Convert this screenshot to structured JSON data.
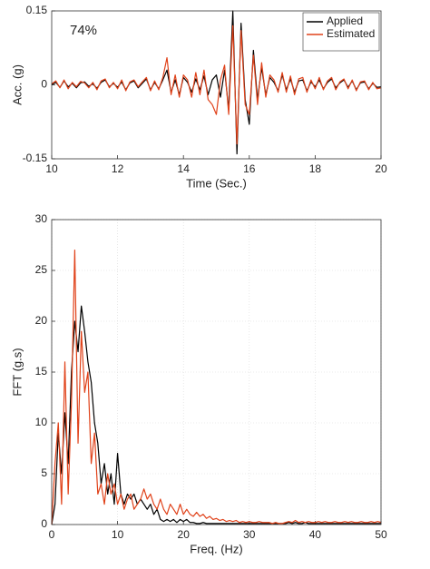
{
  "chart_data": [
    {
      "type": "line",
      "xlabel": "Time (Sec.)",
      "ylabel": "Acc. (g)",
      "annotations": [
        "74%"
      ],
      "legend": "upper right",
      "grid": false,
      "xlim": [
        10,
        20
      ],
      "xticks": [
        10,
        12,
        14,
        16,
        18,
        20
      ],
      "ylim": [
        -0.15,
        0.15
      ],
      "yticks": [
        -0.15,
        0,
        0.15
      ],
      "x": [
        10,
        10.125,
        10.25,
        10.375,
        10.5,
        10.625,
        10.75,
        10.875,
        11,
        11.125,
        11.25,
        11.375,
        11.5,
        11.625,
        11.75,
        11.875,
        12,
        12.125,
        12.25,
        12.375,
        12.5,
        12.625,
        12.75,
        12.875,
        13,
        13.125,
        13.25,
        13.375,
        13.5,
        13.625,
        13.75,
        13.875,
        14,
        14.125,
        14.25,
        14.375,
        14.5,
        14.625,
        14.75,
        14.875,
        15,
        15.125,
        15.25,
        15.375,
        15.5,
        15.625,
        15.75,
        15.875,
        16,
        16.125,
        16.25,
        16.375,
        16.5,
        16.625,
        16.75,
        16.875,
        17,
        17.125,
        17.25,
        17.375,
        17.5,
        17.625,
        17.75,
        17.875,
        18,
        18.125,
        18.25,
        18.375,
        18.5,
        18.625,
        18.75,
        18.875,
        19,
        19.125,
        19.25,
        19.375,
        19.5,
        19.625,
        19.75,
        19.875,
        20
      ],
      "series": [
        {
          "name": "Applied",
          "color": "#000000",
          "values": [
            0,
            0.005,
            -0.005,
            0.008,
            -0.004,
            0.003,
            -0.006,
            0.004,
            0.006,
            -0.003,
            0.002,
            -0.007,
            0.005,
            0.01,
            -0.004,
            0.003,
            -0.005,
            0.006,
            -0.01,
            0.004,
            0.008,
            -0.006,
            0.003,
            0.012,
            -0.01,
            0.005,
            -0.008,
            0.01,
            0.03,
            -0.015,
            0.01,
            -0.02,
            0.015,
            0.005,
            -0.015,
            0.012,
            -0.01,
            0.018,
            -0.02,
            0.01,
            0.02,
            -0.025,
            0.03,
            -0.05,
            0.15,
            -0.14,
            0.125,
            -0.03,
            -0.08,
            0.07,
            -0.03,
            0.035,
            -0.02,
            0.015,
            0.005,
            -0.012,
            0.02,
            -0.01,
            0.012,
            -0.015,
            0.008,
            0.01,
            -0.012,
            0.006,
            -0.004,
            0.01,
            -0.008,
            0.005,
            0.012,
            -0.006,
            0.004,
            0.01,
            -0.005,
            0.008,
            -0.01,
            0.004,
            0.006,
            -0.008,
            0.003,
            -0.005,
            -0.004
          ]
        },
        {
          "name": "Estimated",
          "color": "#e0421a",
          "values": [
            0.002,
            0.008,
            -0.006,
            0.01,
            -0.008,
            0.005,
            -0.004,
            0.007,
            0.004,
            -0.006,
            0.005,
            -0.01,
            0.008,
            0.012,
            -0.006,
            0.005,
            -0.008,
            0.01,
            -0.012,
            0.006,
            0.01,
            -0.004,
            0.006,
            0.015,
            -0.012,
            0.008,
            -0.01,
            0.015,
            0.055,
            -0.02,
            0.02,
            -0.025,
            0.02,
            0.01,
            -0.025,
            0.025,
            -0.02,
            0.03,
            -0.03,
            -0.04,
            -0.06,
            0.01,
            0.04,
            -0.06,
            0.12,
            -0.12,
            0.11,
            -0.04,
            -0.06,
            0.06,
            -0.04,
            0.045,
            -0.025,
            0.02,
            0.01,
            -0.015,
            0.025,
            -0.015,
            0.018,
            -0.02,
            0.012,
            0.015,
            -0.015,
            0.01,
            -0.008,
            0.015,
            -0.01,
            0.008,
            0.015,
            -0.01,
            0.006,
            0.012,
            -0.008,
            0.01,
            -0.012,
            0.006,
            0.008,
            -0.01,
            0.005,
            -0.008,
            -0.006
          ]
        }
      ]
    },
    {
      "type": "line",
      "xlabel": "Freq. (Hz)",
      "ylabel": "FFT (g.s)",
      "grid": true,
      "xlim": [
        0,
        50
      ],
      "xticks": [
        0,
        10,
        20,
        30,
        40,
        50
      ],
      "ylim": [
        0,
        30
      ],
      "yticks": [
        0,
        5,
        10,
        15,
        20,
        25,
        30
      ],
      "x": [
        0,
        0.5,
        1,
        1.5,
        2,
        2.5,
        3,
        3.5,
        4,
        4.5,
        5,
        5.5,
        6,
        6.5,
        7,
        7.5,
        8,
        8.5,
        9,
        9.5,
        10,
        10.5,
        11,
        11.5,
        12,
        12.5,
        13,
        13.5,
        14,
        14.5,
        15,
        15.5,
        16,
        16.5,
        17,
        17.5,
        18,
        18.5,
        19,
        19.5,
        20,
        20.5,
        21,
        21.5,
        22,
        22.5,
        23,
        23.5,
        24,
        24.5,
        25,
        25.5,
        26,
        26.5,
        27,
        27.5,
        28,
        28.5,
        29,
        29.5,
        30,
        30.5,
        31,
        31.5,
        32,
        32.5,
        33,
        33.5,
        34,
        34.5,
        35,
        35.5,
        36,
        36.5,
        37,
        37.5,
        38,
        38.5,
        39,
        39.5,
        40,
        40.5,
        41,
        41.5,
        42,
        42.5,
        43,
        43.5,
        44,
        44.5,
        45,
        45.5,
        46,
        46.5,
        47,
        47.5,
        48,
        48.5,
        49,
        49.5,
        50
      ],
      "series": [
        {
          "name": "Applied",
          "color": "#000000",
          "values": [
            0,
            2,
            9,
            5,
            11,
            6,
            15,
            20,
            17,
            21.5,
            19,
            16,
            14,
            10,
            8,
            4,
            6,
            3,
            5,
            2,
            7,
            3,
            2,
            3,
            2.5,
            3,
            2,
            2.5,
            2,
            1.5,
            2,
            1,
            1.5,
            0.5,
            0.3,
            0.5,
            0.3,
            0.5,
            0.2,
            0.5,
            0.3,
            0.5,
            0.2,
            0.2,
            0.1,
            0.1,
            0.2,
            0.1,
            0.1,
            0.1,
            0.1,
            0.1,
            0.1,
            0.1,
            0.1,
            0.1,
            0.1,
            0.1,
            0.1,
            0.1,
            0.1,
            0.1,
            0.1,
            0.1,
            0.1,
            0.1,
            0.1,
            0.1,
            0.1,
            0.1,
            0.1,
            0.1,
            0.2,
            0.1,
            0.2,
            0.1,
            0.1,
            0.2,
            0.1,
            0.1,
            0.1,
            0.1,
            0.1,
            0.1,
            0.1,
            0.1,
            0.1,
            0.1,
            0.1,
            0.1,
            0.1,
            0.1,
            0.1,
            0.1,
            0.1,
            0.1,
            0.1,
            0.1,
            0.1,
            0.1,
            0.1
          ]
        },
        {
          "name": "Estimated",
          "color": "#e0421a",
          "values": [
            0,
            6,
            10,
            2,
            16,
            3,
            12,
            27,
            8,
            19,
            13,
            15,
            6,
            9,
            3,
            4,
            2,
            5,
            3,
            4,
            2,
            3,
            1.5,
            2.5,
            3,
            1.5,
            2,
            2.5,
            3.5,
            2.5,
            3,
            2,
            1.5,
            2.5,
            1.5,
            1,
            2,
            1.5,
            1,
            2,
            1,
            1.5,
            1,
            0.8,
            1.2,
            0.8,
            1,
            0.6,
            0.8,
            0.5,
            0.6,
            0.4,
            0.5,
            0.3,
            0.4,
            0.3,
            0.4,
            0.2,
            0.3,
            0.2,
            0.3,
            0.2,
            0.2,
            0.3,
            0.2,
            0.2,
            0.2,
            0.1,
            0.2,
            0.1,
            0.1,
            0.2,
            0.3,
            0.2,
            0.4,
            0.2,
            0.3,
            0.2,
            0.3,
            0.2,
            0.2,
            0.3,
            0.2,
            0.3,
            0.2,
            0.2,
            0.3,
            0.2,
            0.2,
            0.3,
            0.2,
            0.3,
            0.2,
            0.2,
            0.3,
            0.2,
            0.2,
            0.3,
            0.2,
            0.3,
            0.2
          ]
        }
      ]
    }
  ]
}
